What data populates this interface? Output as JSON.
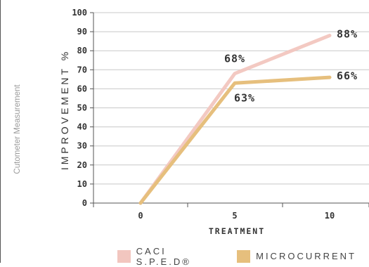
{
  "side_label": "Cutometer Measurement",
  "chart_data": {
    "type": "line",
    "x": [
      0,
      5,
      10
    ],
    "x_tick_labels": [
      "0",
      "5",
      "10"
    ],
    "xlabel": "TREATMENT",
    "ylabel": "IMPROVEMENT %",
    "ylim": [
      0,
      100
    ],
    "y_ticks": [
      0,
      10,
      20,
      30,
      40,
      50,
      60,
      70,
      80,
      90,
      100
    ],
    "grid": true,
    "legend_position": "bottom",
    "series": [
      {
        "name": "CACI S.P.E.D®",
        "values": [
          0,
          68,
          88
        ],
        "labels": [
          "",
          "68%",
          "88%"
        ],
        "color": "#f2c6bf"
      },
      {
        "name": "MICROCURRENT",
        "values": [
          0,
          63,
          66
        ],
        "labels": [
          "",
          "63%",
          "66%"
        ],
        "color": "#e6bf7d"
      }
    ]
  }
}
